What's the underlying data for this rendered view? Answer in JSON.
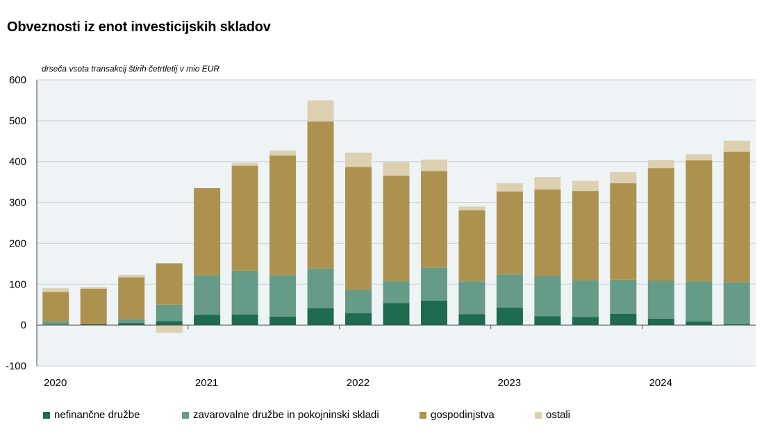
{
  "colors": {
    "plot_bg": "#eef4f6",
    "grid": "#c9d2d6",
    "axis": "#4a4a4a"
  },
  "chart_data": {
    "type": "bar",
    "stacked": true,
    "title": "Obveznosti iz enot investicijskih skladov",
    "subtitle": "drseča vsota transakcij štirih četrtletij v mio EUR",
    "ylim": [
      -100,
      600
    ],
    "yticks": [
      -100,
      0,
      100,
      200,
      300,
      400,
      500,
      600
    ],
    "ytick_labels": [
      "-100",
      "0",
      "100",
      "200",
      "300",
      "400",
      "500",
      "600"
    ],
    "year_labels": [
      "2020",
      "2021",
      "2022",
      "2023",
      "2024"
    ],
    "grid": true,
    "legend_position": "bottom",
    "categories": [
      "2020Q1",
      "2020Q2",
      "2020Q3",
      "2020Q4",
      "2021Q1",
      "2021Q2",
      "2021Q3",
      "2021Q4",
      "2022Q1",
      "2022Q2",
      "2022Q3",
      "2022Q4",
      "2023Q1",
      "2023Q2",
      "2023Q3",
      "2023Q4",
      "2024Q1",
      "2024Q2",
      "2024Q3"
    ],
    "series": [
      {
        "name": "nefinančne družbe",
        "color": "#1e6b4f",
        "values": [
          1,
          2,
          5,
          10,
          25,
          26,
          21,
          41,
          29,
          54,
          60,
          27,
          43,
          22,
          20,
          28,
          16,
          9,
          2
        ]
      },
      {
        "name": "zavarovalne družbe in pokojninski skladi",
        "color": "#659b87",
        "values": [
          8,
          0,
          10,
          40,
          97,
          107,
          101,
          97,
          57,
          53,
          80,
          80,
          81,
          98,
          90,
          83,
          93,
          98,
          103
        ]
      },
      {
        "name": "gospodinjstva",
        "color": "#ad924f",
        "values": [
          72,
          87,
          102,
          101,
          213,
          257,
          293,
          360,
          301,
          259,
          237,
          174,
          203,
          212,
          218,
          236,
          275,
          296,
          319
        ]
      },
      {
        "name": "ostali",
        "color": "#ddd0b0",
        "values": [
          9,
          4,
          6,
          -19,
          0,
          7,
          12,
          52,
          35,
          33,
          28,
          9,
          20,
          30,
          25,
          27,
          20,
          15,
          27
        ]
      }
    ]
  }
}
